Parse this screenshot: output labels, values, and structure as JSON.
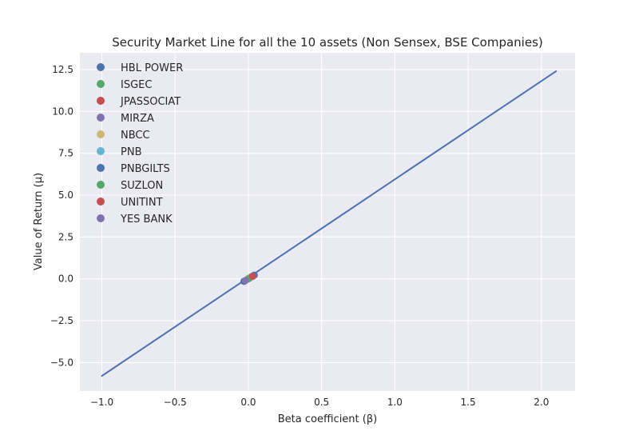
{
  "chart_data": {
    "type": "scatter",
    "title": "Security Market Line for all the 10 assets (Non Sensex, BSE Companies)",
    "xlabel": "Beta coefficient (β)",
    "ylabel": "Value of Return (μ)",
    "xlim": [
      -1.15,
      2.23
    ],
    "ylim": [
      -6.7,
      13.5
    ],
    "x_ticks": [
      -1.0,
      -0.5,
      0.0,
      0.5,
      1.0,
      1.5,
      2.0
    ],
    "x_tick_labels": [
      "−1.0",
      "−0.5",
      "0.0",
      "0.5",
      "1.0",
      "1.5",
      "2.0"
    ],
    "y_ticks": [
      -5.0,
      -2.5,
      0.0,
      2.5,
      5.0,
      7.5,
      10.0,
      12.5
    ],
    "y_tick_labels": [
      "−5.0",
      "−2.5",
      "0.0",
      "2.5",
      "5.0",
      "7.5",
      "10.0",
      "12.5"
    ],
    "grid": true,
    "legend_placement": "upper-left",
    "line": {
      "x": [
        -1.0,
        2.1
      ],
      "y": [
        -5.8,
        12.4
      ],
      "color": "#4c72b0"
    },
    "series": [
      {
        "name": "HBL POWER",
        "x": -0.03,
        "y": -0.15,
        "color": "#4c72b0"
      },
      {
        "name": "ISGEC",
        "x": 0.0,
        "y": 0.02,
        "color": "#55a868"
      },
      {
        "name": "JPASSOCIAT",
        "x": 0.02,
        "y": 0.12,
        "color": "#c44e52"
      },
      {
        "name": "MIRZA",
        "x": 0.01,
        "y": 0.05,
        "color": "#8172b2"
      },
      {
        "name": "NBCC",
        "x": 0.0,
        "y": 0.03,
        "color": "#ccb974"
      },
      {
        "name": "PNB",
        "x": 0.01,
        "y": 0.06,
        "color": "#64b5cd"
      },
      {
        "name": "PNBGILTS",
        "x": 0.04,
        "y": 0.22,
        "color": "#4c72b0"
      },
      {
        "name": "SUZLON",
        "x": 0.0,
        "y": 0.0,
        "color": "#55a868"
      },
      {
        "name": "UNITINT",
        "x": 0.03,
        "y": 0.15,
        "color": "#c44e52"
      },
      {
        "name": "YES BANK",
        "x": -0.02,
        "y": -0.1,
        "color": "#8172b2"
      }
    ]
  }
}
